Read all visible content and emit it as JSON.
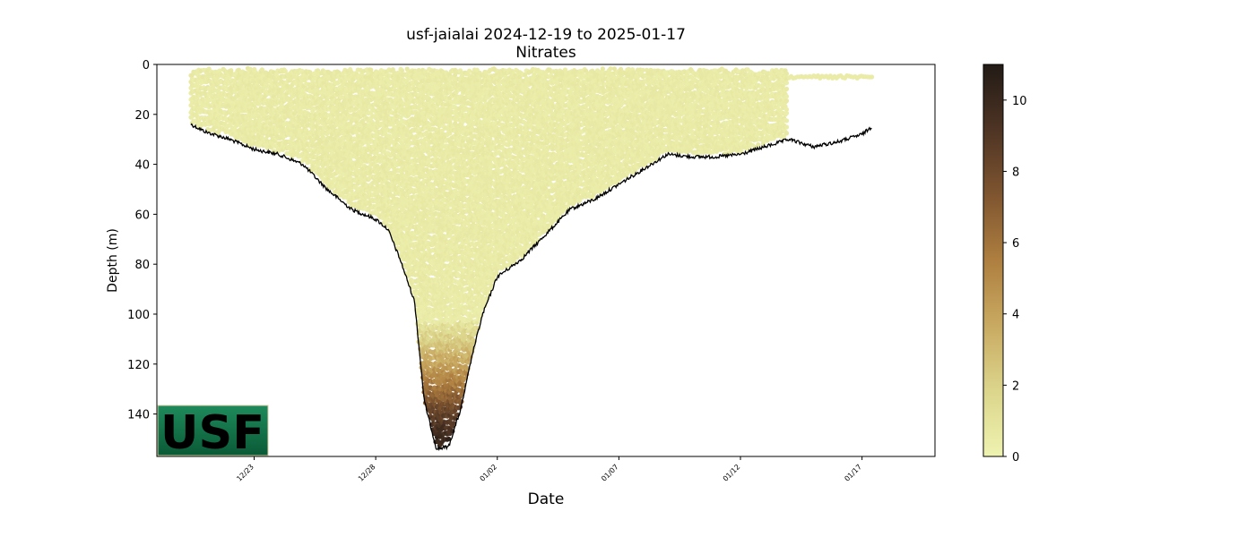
{
  "chart_data": {
    "type": "scatter",
    "title": "usf-jaialai 2024-12-19 to 2025-01-17",
    "subtitle": "Nitrates",
    "xlabel": "Date",
    "ylabel": "Depth (m)",
    "x_ticks": [
      "12/23",
      "12/28",
      "01/02",
      "01/07",
      "01/12",
      "01/17"
    ],
    "x_tick_dates": [
      "2024-12-23",
      "2024-12-28",
      "2025-01-02",
      "2025-01-07",
      "2025-01-12",
      "2025-01-17"
    ],
    "xlim": [
      "2024-12-19",
      "2025-01-20"
    ],
    "ylim": [
      157,
      0
    ],
    "y_ticks": [
      0,
      20,
      40,
      60,
      80,
      100,
      120,
      140
    ],
    "y_inverted": true,
    "colorbar": {
      "ticks": [
        0,
        2,
        4,
        6,
        8,
        10
      ],
      "range": [
        0,
        11
      ],
      "colors": [
        "#eef3b0",
        "#dcd58c",
        "#c9aa62",
        "#ae7f40",
        "#7f5530",
        "#4e3424",
        "#221b16"
      ]
    },
    "bottom_profile": [
      {
        "date": "2024-12-20.4",
        "depth": 24
      },
      {
        "date": "2024-12-21",
        "depth": 27
      },
      {
        "date": "2024-12-22",
        "depth": 30
      },
      {
        "date": "2024-12-23",
        "depth": 34
      },
      {
        "date": "2024-12-24",
        "depth": 36
      },
      {
        "date": "2024-12-25",
        "depth": 40
      },
      {
        "date": "2024-12-26",
        "depth": 50
      },
      {
        "date": "2024-12-27",
        "depth": 58
      },
      {
        "date": "2024-12-28",
        "depth": 62
      },
      {
        "date": "2024-12-28.5",
        "depth": 66
      },
      {
        "date": "2024-12-29",
        "depth": 78
      },
      {
        "date": "2024-12-29.6",
        "depth": 95
      },
      {
        "date": "2024-12-30",
        "depth": 135
      },
      {
        "date": "2024-12-30.5",
        "depth": 154
      },
      {
        "date": "2024-12-31",
        "depth": 153
      },
      {
        "date": "2024-12-31.5",
        "depth": 138
      },
      {
        "date": "2025-01-01",
        "depth": 115
      },
      {
        "date": "2025-01-01.4",
        "depth": 100
      },
      {
        "date": "2025-01-02",
        "depth": 85
      },
      {
        "date": "2025-01-03",
        "depth": 78
      },
      {
        "date": "2025-01-04",
        "depth": 68
      },
      {
        "date": "2025-01-05",
        "depth": 58
      },
      {
        "date": "2025-01-06",
        "depth": 54
      },
      {
        "date": "2025-01-07",
        "depth": 48
      },
      {
        "date": "2025-01-08",
        "depth": 42
      },
      {
        "date": "2025-01-09",
        "depth": 36
      },
      {
        "date": "2025-01-10",
        "depth": 37
      },
      {
        "date": "2025-01-11",
        "depth": 37
      },
      {
        "date": "2025-01-12",
        "depth": 36
      },
      {
        "date": "2025-01-13",
        "depth": 33
      },
      {
        "date": "2025-01-14",
        "depth": 30
      },
      {
        "date": "2025-01-15",
        "depth": 33
      },
      {
        "date": "2025-01-16",
        "depth": 31
      },
      {
        "date": "2025-01-17",
        "depth": 28
      },
      {
        "date": "2025-01-17.4",
        "depth": 25
      }
    ],
    "observations": {
      "summary": "Nitrate near 0–1 everywhere in the upper water column; values rise with depth below ~105 m in the deep trough, reaching ~10 near 150 m.",
      "sampled_period": [
        "2024-12-20.4",
        "2025-01-13.9"
      ],
      "surface_only_period": [
        "2025-01-14",
        "2025-01-17.4"
      ],
      "surface_only_depth": 5,
      "min_sample_depth": 2,
      "depth_profile": [
        {
          "depth": 100,
          "value": 0.5
        },
        {
          "depth": 110,
          "value": 2
        },
        {
          "depth": 120,
          "value": 4
        },
        {
          "depth": 130,
          "value": 6
        },
        {
          "depth": 140,
          "value": 8.5
        },
        {
          "depth": 150,
          "value": 10
        },
        {
          "depth": 155,
          "value": 10.5
        }
      ]
    }
  },
  "logo": {
    "text": "USF",
    "bg_top": "#1e8a5c",
    "bg_bottom": "#0a5a36",
    "fg": "#f2eccf"
  }
}
